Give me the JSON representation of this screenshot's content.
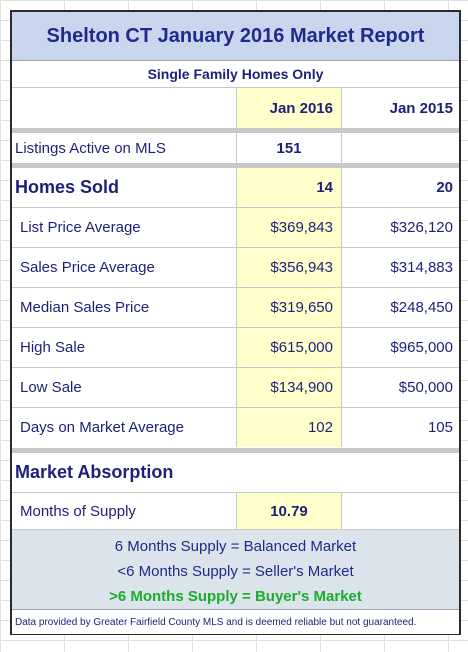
{
  "report": {
    "title": "Shelton CT January 2016 Market Report",
    "subtitle": "Single Family Homes Only",
    "columns": {
      "current": "Jan 2016",
      "previous": "Jan 2015"
    },
    "listings_active": {
      "label": "Listings Active on MLS",
      "current": "151",
      "previous": ""
    },
    "homes_sold": {
      "label": "Homes Sold",
      "current": "14",
      "previous": "20"
    },
    "rows": [
      {
        "label": "List Price Average",
        "current": "$369,843",
        "previous": "$326,120"
      },
      {
        "label": "Sales Price Average",
        "current": "$356,943",
        "previous": "$314,883"
      },
      {
        "label": "Median Sales Price",
        "current": "$319,650",
        "previous": "$248,450"
      },
      {
        "label": "High Sale",
        "current": "$615,000",
        "previous": "$965,000"
      },
      {
        "label": "Low Sale",
        "current": "$134,900",
        "previous": "$50,000"
      },
      {
        "label": "Days on Market Average",
        "current": "102",
        "previous": "105"
      }
    ],
    "absorption": {
      "heading": "Market Absorption",
      "label": "Months of Supply",
      "current": "10.79",
      "previous": ""
    },
    "notes": [
      "6 Months Supply = Balanced Market",
      "<6 Months Supply = Seller's Market",
      ">6 Months Supply = Buyer's Market"
    ],
    "footer": "Data provided by Greater Fairfield County MLS and is deemed reliable but not guaranteed.",
    "colors": {
      "title_bg": "#c9d6ee",
      "highlight": "#ffffcc",
      "notes_bg": "#dbe4ea",
      "buyer_green": "#1cac2c",
      "text_navy": "#1f1f7a"
    }
  }
}
